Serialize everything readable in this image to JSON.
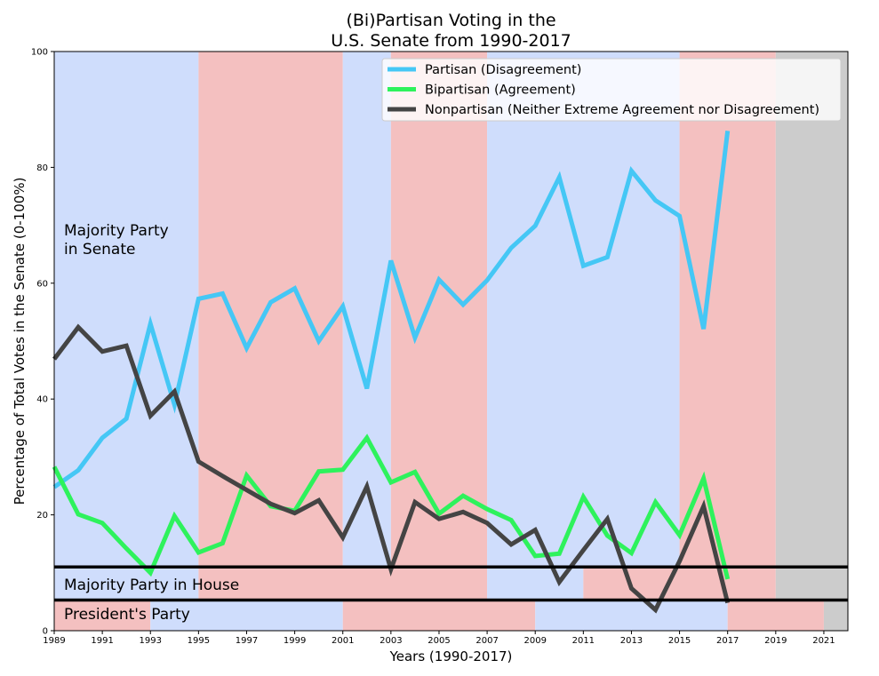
{
  "chart_data": {
    "type": "line",
    "title": [
      "(Bi)Partisan Voting in the",
      "U.S. Senate from 1990-2017"
    ],
    "xlabel": "Years (1990-2017)",
    "ylabel": "Percentage of Total Votes in the Senate (0-100%)",
    "xlim": [
      1989,
      2022
    ],
    "ylim": [
      0,
      100
    ],
    "x_ticks": [
      "1989",
      "1991",
      "1993",
      "1995",
      "1997",
      "1999",
      "2001",
      "2003",
      "2005",
      "2007",
      "2009",
      "2011",
      "2013",
      "2015",
      "2017",
      "2019",
      "2021"
    ],
    "y_ticks": [
      "0",
      "20",
      "40",
      "60",
      "80",
      "100"
    ],
    "legend_position": "top-right",
    "colors": {
      "democrat": "#cfddfc",
      "republican": "#f4c0c0",
      "future": "#cccccc"
    },
    "x": [
      1989,
      1990,
      1991,
      1992,
      1993,
      1994,
      1995,
      1996,
      1997,
      1998,
      1999,
      2000,
      2001,
      2002,
      2003,
      2004,
      2005,
      2006,
      2007,
      2008,
      2009,
      2010,
      2011,
      2012,
      2013,
      2014,
      2015,
      2016,
      2017
    ],
    "series": [
      {
        "name": "Partisan (Disagreement)",
        "color": "#45c7f5",
        "values": [
          24.8,
          27.7,
          33.3,
          36.6,
          53.0,
          39.0,
          57.3,
          58.2,
          48.8,
          56.7,
          59.1,
          50.0,
          56.0,
          41.8,
          63.9,
          50.6,
          60.6,
          56.3,
          60.5,
          66.1,
          69.9,
          78.3,
          63.0,
          64.5,
          79.4,
          74.3,
          71.6,
          52.1,
          86.3
        ]
      },
      {
        "name": "Bipartisan (Agreement)",
        "color": "#2ef25c",
        "values": [
          28.3,
          20.1,
          18.6,
          14.2,
          10.0,
          19.8,
          13.5,
          15.1,
          26.8,
          21.5,
          20.7,
          27.5,
          27.8,
          33.3,
          25.6,
          27.4,
          20.2,
          23.3,
          21.0,
          19.1,
          12.9,
          13.3,
          23.1,
          16.4,
          13.4,
          22.2,
          16.5,
          26.3,
          8.9
        ]
      },
      {
        "name": "Nonpartisan (Neither Extreme Agreement nor Disagreement)",
        "color": "#444444",
        "values": [
          46.9,
          52.4,
          48.2,
          49.2,
          37.1,
          41.3,
          29.2,
          26.7,
          24.3,
          21.9,
          20.3,
          22.5,
          16.1,
          24.9,
          10.6,
          22.2,
          19.3,
          20.5,
          18.6,
          14.9,
          17.4,
          8.4,
          13.9,
          19.3,
          7.3,
          3.6,
          12.0,
          21.5,
          4.8
        ]
      }
    ],
    "senate_majority": [
      {
        "from": 1989,
        "to": 1995,
        "party": "democrat"
      },
      {
        "from": 1995,
        "to": 2001,
        "party": "republican"
      },
      {
        "from": 2001,
        "to": 2003,
        "party": "democrat"
      },
      {
        "from": 2003,
        "to": 2007,
        "party": "republican"
      },
      {
        "from": 2007,
        "to": 2015,
        "party": "democrat"
      },
      {
        "from": 2015,
        "to": 2019,
        "party": "republican"
      },
      {
        "from": 2019,
        "to": 2022,
        "party": "future"
      }
    ],
    "house_majority": [
      {
        "from": 1989,
        "to": 1995,
        "party": "democrat"
      },
      {
        "from": 1995,
        "to": 2007,
        "party": "republican"
      },
      {
        "from": 2007,
        "to": 2011,
        "party": "democrat"
      },
      {
        "from": 2011,
        "to": 2019,
        "party": "republican"
      },
      {
        "from": 2019,
        "to": 2022,
        "party": "future"
      }
    ],
    "president_party": [
      {
        "from": 1989,
        "to": 1993,
        "party": "republican"
      },
      {
        "from": 1993,
        "to": 2001,
        "party": "democrat"
      },
      {
        "from": 2001,
        "to": 2009,
        "party": "republican"
      },
      {
        "from": 2009,
        "to": 2017,
        "party": "democrat"
      },
      {
        "from": 2017,
        "to": 2021,
        "party": "republican"
      },
      {
        "from": 2021,
        "to": 2022,
        "party": "future"
      }
    ],
    "band_dividers": [
      11,
      5.3
    ],
    "annotations": {
      "senate_label": [
        "Majority Party",
        "in Senate"
      ],
      "house_label": "Majority Party in House",
      "president_label": "President's Party"
    }
  }
}
